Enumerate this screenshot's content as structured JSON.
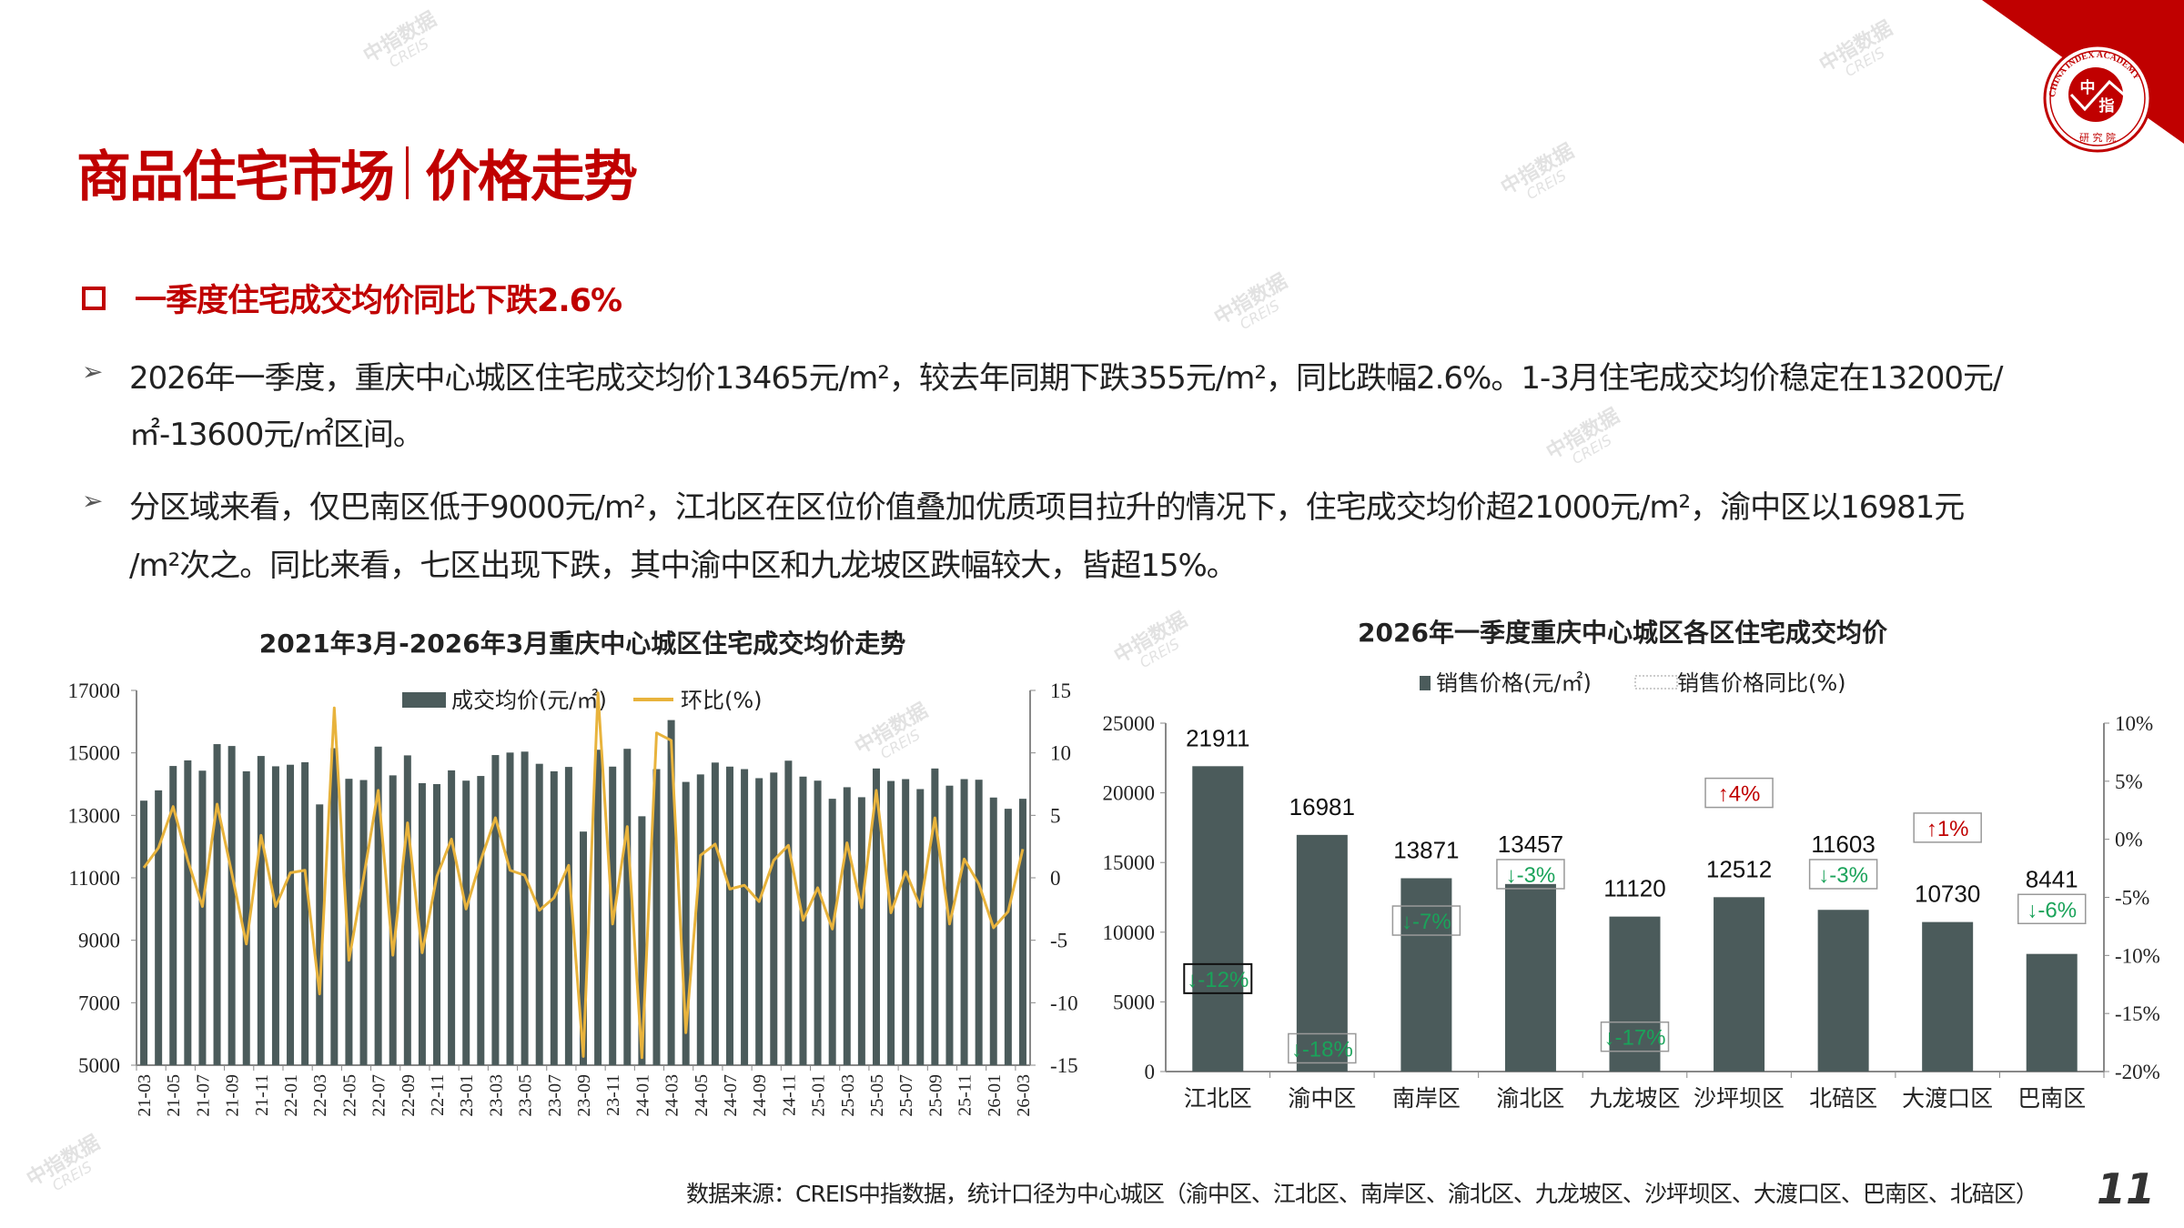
{
  "header": {
    "title_left": "商品住宅市场",
    "title_right": "价格走势",
    "logo_text": "CHINA INDEX ACADEMY 中指 研究院"
  },
  "subheading": "一季度住宅成交均价同比下跌2.6%",
  "bullets": [
    {
      "lines": [
        "2026年一季度，重庆中心城区住宅成交均价13465元/m²，较去年同期下跌355元/m²，同比跌幅2.6%。1-3月住宅成交均价稳定在13200元/",
        "㎡-13600元/㎡区间。"
      ]
    },
    {
      "lines": [
        "分区域来看，仅巴南区低于9000元/m²，江北区在区位价值叠加优质项目拉升的情况下，住宅成交均价超21000元/m²，渝中区以16981元",
        "/m²次之。同比来看，七区出现下跌，其中渝中区和九龙坡区跌幅较大，皆超15%。"
      ]
    }
  ],
  "watermark": {
    "cn": "中指数据",
    "en": "CREIS"
  },
  "footer": {
    "source": "数据来源：CREIS中指数据，统计口径为中心城区（渝中区、江北区、南岸区、渝北区、九龙坡区、沙坪坝区、大渡口区、巴南区、北碚区）",
    "page": "11"
  },
  "colors": {
    "brand": "#c00000",
    "bar": "#4b5b5b",
    "line": "#e8b33c",
    "up": "#c00000",
    "down": "#1aa35a"
  },
  "chart_data": [
    {
      "type": "bar+line",
      "title": "2021年3月-2026年3月重庆中心城区住宅成交均价走势",
      "legend": [
        "成交均价(元/㎡)",
        "环比(%)"
      ],
      "legend_position": "top",
      "x": [
        "21-03",
        "21-04",
        "21-05",
        "21-06",
        "21-07",
        "21-08",
        "21-09",
        "21-10",
        "21-11",
        "21-12",
        "22-01",
        "22-02",
        "22-03",
        "22-04",
        "22-05",
        "22-06",
        "22-07",
        "22-08",
        "22-09",
        "22-10",
        "22-11",
        "22-12",
        "23-01",
        "23-02",
        "23-03",
        "23-04",
        "23-05",
        "23-06",
        "23-07",
        "23-08",
        "23-09",
        "23-10",
        "23-11",
        "23-12",
        "24-01",
        "24-02",
        "24-03",
        "24-04",
        "24-05",
        "24-06",
        "24-07",
        "24-08",
        "24-09",
        "24-10",
        "24-11",
        "24-12",
        "25-01",
        "25-02",
        "25-03",
        "25-04",
        "25-05",
        "25-06",
        "25-07",
        "25-08",
        "25-09",
        "25-10",
        "25-11",
        "25-12",
        "26-01",
        "26-02",
        "26-03"
      ],
      "series": [
        {
          "name": "成交均价(元/㎡)",
          "axis": "left",
          "kind": "bar",
          "values": [
            13470,
            13800,
            14580,
            14760,
            14430,
            15280,
            15220,
            14410,
            14900,
            14570,
            14620,
            14700,
            13350,
            15150,
            14170,
            14130,
            15200,
            14280,
            14920,
            14030,
            14000,
            14440,
            14110,
            14260,
            14930,
            15010,
            15040,
            14650,
            14410,
            14550,
            12480,
            15100,
            14560,
            15130,
            12970,
            14480,
            16050,
            14070,
            14310,
            14690,
            14560,
            14480,
            14190,
            14370,
            14750,
            14240,
            14110,
            13530,
            13900,
            13580,
            14500,
            14100,
            14160,
            13840,
            14500,
            13950,
            14160,
            14140,
            13570,
            13210,
            13530
          ]
        },
        {
          "name": "环比(%)",
          "axis": "right",
          "kind": "line",
          "values": [
            0.8,
            2.4,
            5.7,
            1.4,
            -2.3,
            5.9,
            0.4,
            -5.3,
            3.4,
            -2.3,
            0.4,
            0.6,
            -9.3,
            13.6,
            -6.6,
            0.0,
            7.0,
            -6.2,
            4.4,
            -6.0,
            0.1,
            3.1,
            -2.5,
            1.4,
            4.8,
            0.6,
            0.2,
            -2.6,
            -1.6,
            1.0,
            -14.3,
            14.8,
            -3.7,
            4.1,
            -14.4,
            11.6,
            11.0,
            -12.4,
            1.8,
            2.7,
            -0.9,
            -0.6,
            -1.9,
            1.4,
            2.6,
            -3.4,
            -0.8,
            -4.1,
            2.8,
            -2.4,
            7.0,
            -2.8,
            0.5,
            -2.3,
            4.8,
            -3.7,
            1.5,
            -0.5,
            -4.0,
            -2.7,
            2.3
          ]
        }
      ],
      "ylim_left": [
        5000,
        17000
      ],
      "yticks_left": [
        17000,
        15000,
        13000,
        11000,
        9000,
        7000,
        5000
      ],
      "ylim_right": [
        -15,
        15
      ],
      "yticks_right": [
        15,
        10,
        5,
        0,
        -5,
        -10,
        -15
      ],
      "grid": false
    },
    {
      "type": "bar",
      "title": "2026年一季度重庆中心城区各区住宅成交均价",
      "legend": [
        "销售价格(元/㎡)",
        "销售价格同比(%)"
      ],
      "legend_position": "top",
      "categories": [
        "江北区",
        "渝中区",
        "南岸区",
        "渝北区",
        "九龙坡区",
        "沙坪坝区",
        "北碚区",
        "大渡口区",
        "巴南区"
      ],
      "values": [
        21911,
        16981,
        13871,
        13457,
        11120,
        12512,
        11603,
        10730,
        8441
      ],
      "yoy": [
        -12,
        -18,
        -7,
        -3,
        -17,
        4,
        -3,
        1,
        -6
      ],
      "yoy_labels": [
        "↓-12%",
        "↓-18%",
        "↓-7%",
        "↓-3%",
        "↓-17%",
        "↑4%",
        "↓-3%",
        "↑1%",
        "↓-6%"
      ],
      "ylim_left": [
        0,
        25000
      ],
      "yticks_left": [
        25000,
        20000,
        15000,
        10000,
        5000,
        0
      ],
      "ylim_right": [
        -20,
        10
      ],
      "yticks_right": [
        "10%",
        "5%",
        "0%",
        "-5%",
        "-10%",
        "-15%",
        "-20%"
      ],
      "grid": false
    }
  ]
}
